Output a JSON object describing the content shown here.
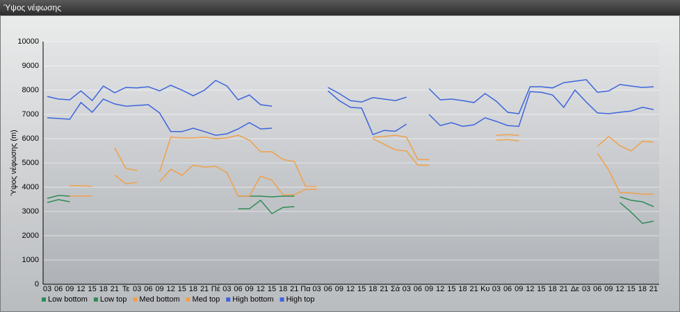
{
  "chart_data": {
    "type": "line",
    "title": "Ύψος νέφωσης",
    "y_label": "Ύψος νέφωσης (m)",
    "categories": [
      "03",
      "06",
      "09",
      "12",
      "15",
      "18",
      "21",
      "Τε",
      "03",
      "06",
      "09",
      "12",
      "15",
      "18",
      "21",
      "Πέ",
      "03",
      "06",
      "09",
      "12",
      "15",
      "18",
      "21",
      "Πα",
      "03",
      "06",
      "09",
      "12",
      "15",
      "18",
      "21",
      "Σά",
      "03",
      "06",
      "09",
      "12",
      "15",
      "18",
      "21",
      "Κυ",
      "03",
      "06",
      "09",
      "12",
      "15",
      "18",
      "21",
      "Δε",
      "03",
      "06",
      "09",
      "12",
      "15",
      "18",
      "21"
    ],
    "series": [
      {
        "name": "Low bottom",
        "color": "#2e8b57",
        "values": [
          3370,
          3490,
          3400,
          null,
          null,
          null,
          null,
          null,
          null,
          null,
          null,
          null,
          null,
          null,
          null,
          null,
          null,
          3110,
          3110,
          3460,
          2910,
          3170,
          3200,
          null,
          null,
          null,
          null,
          null,
          null,
          null,
          null,
          null,
          null,
          null,
          null,
          null,
          null,
          null,
          null,
          null,
          null,
          null,
          null,
          null,
          null,
          null,
          null,
          null,
          null,
          null,
          null,
          3370,
          2970,
          2510,
          2600
        ]
      },
      {
        "name": "Low top",
        "color": "#2e8b57",
        "values": [
          3540,
          3660,
          3630,
          null,
          null,
          null,
          null,
          null,
          null,
          null,
          null,
          null,
          null,
          null,
          null,
          null,
          null,
          3630,
          3630,
          3630,
          3600,
          3630,
          3630,
          null,
          null,
          null,
          null,
          null,
          null,
          null,
          null,
          null,
          null,
          null,
          null,
          null,
          null,
          null,
          null,
          null,
          null,
          null,
          null,
          null,
          null,
          null,
          null,
          null,
          null,
          null,
          null,
          3600,
          3460,
          3400,
          3200
        ]
      },
      {
        "name": "Med bottom",
        "color": "#f0a048",
        "values": [
          null,
          null,
          3630,
          3630,
          3630,
          null,
          4510,
          4140,
          4200,
          null,
          4230,
          4740,
          4490,
          4910,
          4830,
          4860,
          4600,
          3630,
          3630,
          4460,
          4290,
          3690,
          3690,
          3910,
          3910,
          null,
          null,
          null,
          null,
          6000,
          5770,
          5540,
          5490,
          4910,
          4910,
          null,
          null,
          null,
          null,
          null,
          5940,
          5970,
          5910,
          null,
          null,
          null,
          null,
          null,
          null,
          5400,
          4710,
          3770,
          3770,
          3710,
          3710
        ]
      },
      {
        "name": "Med top",
        "color": "#f0a048",
        "values": [
          null,
          null,
          4060,
          4060,
          4030,
          null,
          5630,
          4770,
          4690,
          null,
          4630,
          6060,
          6030,
          6030,
          6060,
          6000,
          6030,
          6140,
          5940,
          5460,
          5460,
          5140,
          5060,
          4030,
          4030,
          null,
          null,
          null,
          null,
          6060,
          6090,
          6140,
          6060,
          5140,
          5140,
          null,
          null,
          null,
          null,
          null,
          6140,
          6170,
          6140,
          null,
          null,
          null,
          null,
          null,
          null,
          5690,
          6090,
          5710,
          5490,
          5890,
          5860
        ]
      },
      {
        "name": "High bottom",
        "color": "#3c64dc",
        "values": [
          6860,
          6830,
          6800,
          7490,
          7090,
          7630,
          7430,
          7340,
          7370,
          7400,
          7060,
          6290,
          6290,
          6430,
          6290,
          6140,
          6200,
          6400,
          6660,
          6400,
          6430,
          null,
          null,
          null,
          null,
          7970,
          7570,
          7290,
          7260,
          6170,
          6340,
          6310,
          6600,
          null,
          7000,
          6540,
          6660,
          6510,
          6570,
          6860,
          6710,
          6540,
          6510,
          7940,
          7910,
          7800,
          7290,
          8000,
          7510,
          7060,
          7030,
          7090,
          7140,
          7290,
          7200
        ]
      },
      {
        "name": "High top",
        "color": "#3c64dc",
        "values": [
          7740,
          7630,
          7600,
          7970,
          7570,
          8170,
          7890,
          8110,
          8090,
          8140,
          7970,
          8200,
          8000,
          7770,
          8000,
          8400,
          8170,
          7600,
          7800,
          7400,
          7340,
          null,
          null,
          null,
          null,
          8110,
          7860,
          7570,
          7510,
          7690,
          7630,
          7570,
          7710,
          null,
          8060,
          7600,
          7630,
          7570,
          7490,
          7860,
          7540,
          7090,
          7030,
          8140,
          8140,
          8090,
          8310,
          8370,
          8430,
          7910,
          7970,
          8230,
          8170,
          8110,
          8140
        ]
      }
    ],
    "ylim": [
      0,
      10000
    ],
    "yticks": [
      0,
      1000,
      2000,
      3000,
      4000,
      5000,
      6000,
      7000,
      8000,
      9000,
      10000
    ],
    "grid": true
  }
}
